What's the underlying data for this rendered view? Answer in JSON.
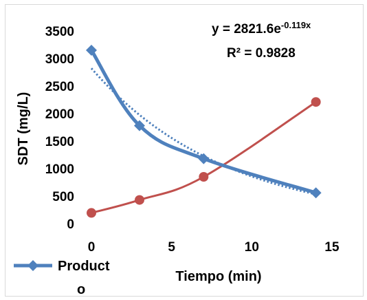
{
  "chart_data": {
    "type": "line",
    "xlabel": "Tiempo (min)",
    "ylabel": "SDT (mg/L)",
    "xlim": [
      0,
      15
    ],
    "ylim": [
      0,
      3500
    ],
    "x_ticks": [
      0,
      5,
      10,
      15
    ],
    "y_ticks": [
      0,
      500,
      1000,
      1500,
      2000,
      2500,
      3000,
      3500
    ],
    "grid": false,
    "series": [
      {
        "name": "Producto",
        "color": "#4f81bd",
        "marker": "diamond",
        "x": [
          0,
          3,
          7,
          14
        ],
        "y": [
          3150,
          1780,
          1180,
          560
        ]
      },
      {
        "color": "#c0504d",
        "marker": "circle",
        "x": [
          0,
          3,
          7,
          14
        ],
        "y": [
          195,
          430,
          850,
          2210
        ]
      }
    ],
    "trendline": {
      "series": "Producto",
      "kind": "exponential",
      "a": 2821.6,
      "b": -0.119,
      "color": "#4f81bd",
      "style": "dotted"
    },
    "equation": {
      "prefix": "y = 2821.6e",
      "exponent": "-0.119x"
    },
    "r_squared": "R² = 0.9828",
    "legend": {
      "position": "bottom-left",
      "label_line1": "Product",
      "label_line2": "o"
    }
  }
}
